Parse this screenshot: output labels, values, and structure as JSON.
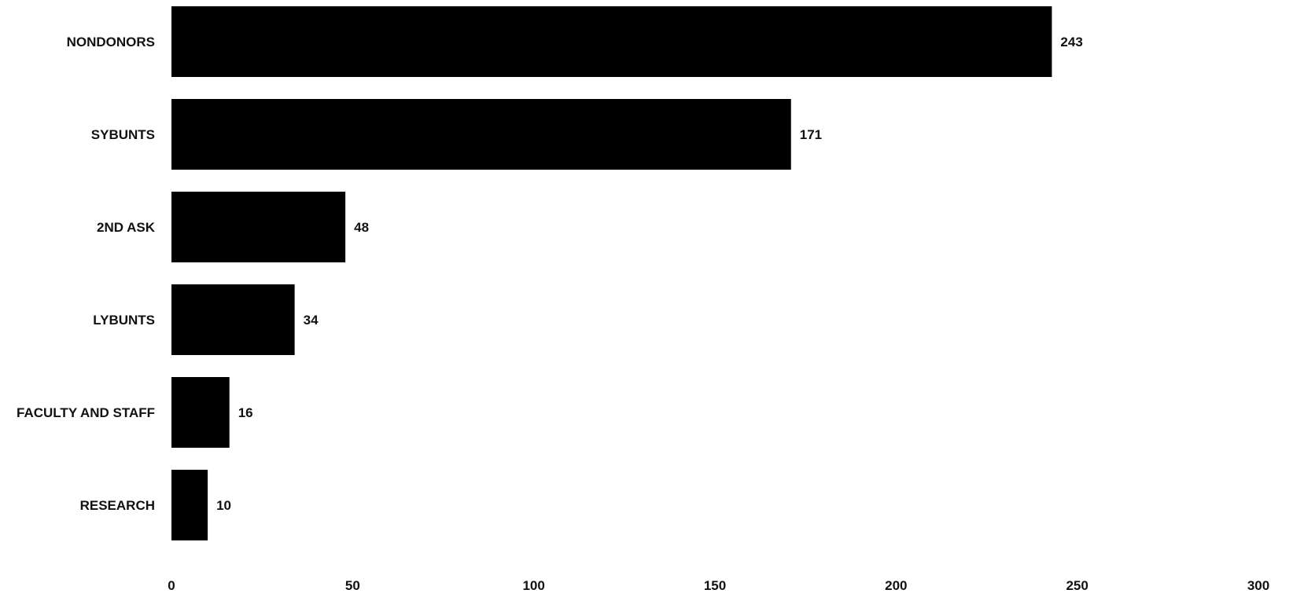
{
  "chart_data": {
    "type": "bar",
    "orientation": "horizontal",
    "categories": [
      "NONDONORS",
      "SYBUNTS",
      "2ND ASK",
      "LYBUNTS",
      "FACULTY AND STAFF",
      "RESEARCH"
    ],
    "values": [
      243,
      171,
      48,
      34,
      16,
      10
    ],
    "value_labels": [
      "243",
      "171",
      "48",
      "34",
      "16",
      "10"
    ],
    "title": "",
    "xlabel": "",
    "ylabel": "",
    "xlim": [
      0,
      300
    ],
    "x_ticks": [
      0,
      50,
      100,
      150,
      200,
      250,
      300
    ],
    "x_tick_labels": [
      "0",
      "50",
      "100",
      "150",
      "200",
      "250",
      "300"
    ],
    "grid": false,
    "legend": "none",
    "bar_color": "#000000",
    "text_color": "#111111"
  }
}
